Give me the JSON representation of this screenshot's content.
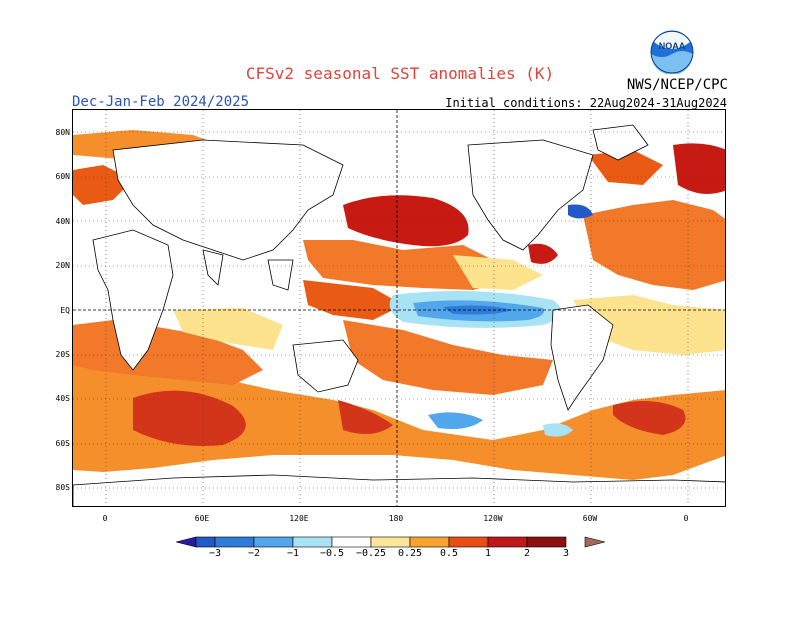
{
  "title": "CFSv2 seasonal SST anomalies (K)",
  "subtitle_left": "Dec-Jan-Feb 2024/2025",
  "subtitle_right": "Initial conditions: 22Aug2024-31Aug2024",
  "agency": "NWS/NCEP/CPC",
  "logo_text": "NOAA",
  "lat_labels": [
    "80N",
    "60N",
    "40N",
    "20N",
    "EQ",
    "20S",
    "40S",
    "60S",
    "80S"
  ],
  "lon_labels": [
    "0",
    "60E",
    "120E",
    "180",
    "120W",
    "60W",
    "0"
  ],
  "colorbar": {
    "tick_labels": [
      "−3",
      "−2",
      "−1",
      "−0.5",
      "−0.25",
      "0.25",
      "0.5",
      "1",
      "2",
      "3"
    ],
    "colors": [
      "#2a1ca0",
      "#2258c8",
      "#2f7bd9",
      "#52a6ec",
      "#a8e3f5",
      "#ffffff",
      "#fde69a",
      "#f8a230",
      "#ea4d14",
      "#c01818",
      "#8e0f0f",
      "#a06a5a"
    ]
  },
  "anomaly_colors": {
    "strong_warm": "#c61a12",
    "warm": "#e95b14",
    "moderate_warm": "#f89a2c",
    "slight_warm": "#fde38e",
    "slight_cool": "#a8e3f5",
    "cool": "#52a6ec",
    "strong_cool": "#2258c8"
  }
}
